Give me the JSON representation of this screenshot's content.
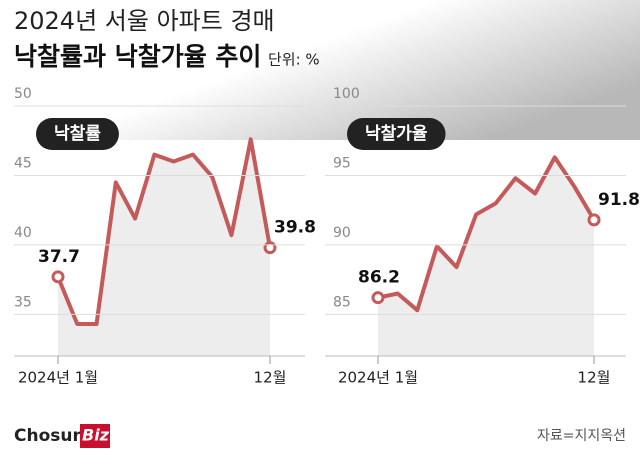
{
  "header": {
    "title": "2024년 서울 아파트 경매",
    "subtitle": "낙찰률과 낙찰가율 추이",
    "unit": "단위: %"
  },
  "chart_data": [
    {
      "type": "line",
      "categories": [
        "2024년 1월",
        null,
        null,
        null,
        null,
        null,
        null,
        null,
        null,
        null,
        null,
        "12월"
      ],
      "series": [
        {
          "name": "낙찰률",
          "color": "#c45a5a",
          "values": [
            37.7,
            34.3,
            34.3,
            44.5,
            41.9,
            46.5,
            46.0,
            46.5,
            44.9,
            40.7,
            47.6,
            39.8
          ]
        }
      ],
      "ylim": [
        32,
        50
      ],
      "yticks": [
        35,
        40,
        45,
        50
      ],
      "grid": true
    },
    {
      "type": "line",
      "categories": [
        "2024년 1월",
        null,
        null,
        null,
        null,
        null,
        null,
        null,
        null,
        null,
        null,
        "12월"
      ],
      "series": [
        {
          "name": "낙찰가율",
          "color": "#c45a5a",
          "values": [
            86.2,
            86.5,
            85.3,
            89.9,
            88.4,
            92.2,
            93.0,
            94.8,
            93.7,
            96.3,
            94.2,
            91.8
          ]
        }
      ],
      "ylim": [
        82,
        100
      ],
      "yticks": [
        85,
        90,
        95,
        100
      ],
      "grid": true
    }
  ],
  "footer": {
    "logo": "Chosun",
    "logo_highlight": "Biz",
    "source": "자료=지지옥션"
  }
}
